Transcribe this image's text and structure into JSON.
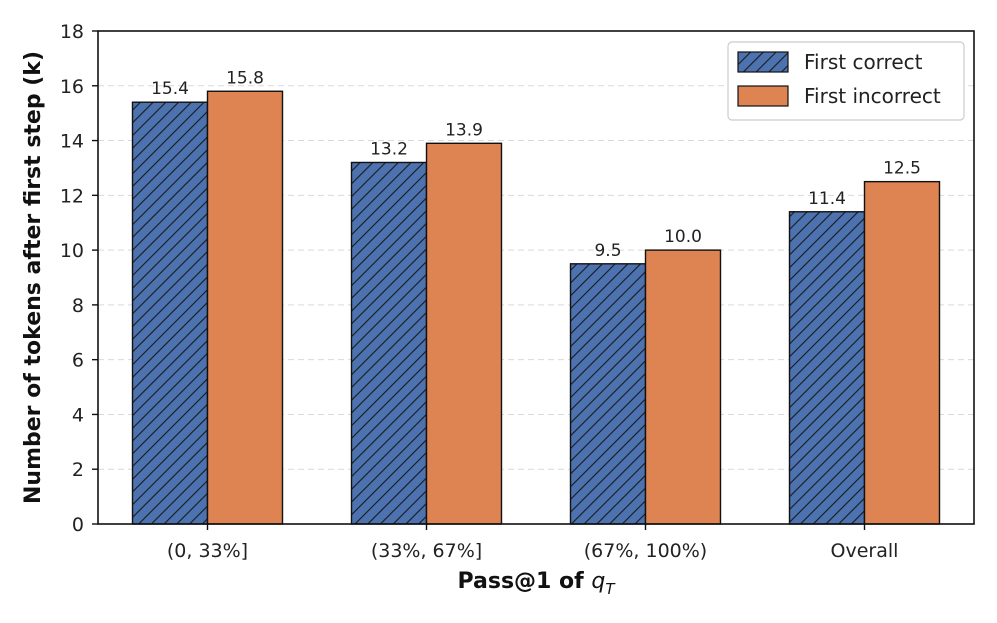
{
  "chart_data": {
    "type": "bar",
    "categories": [
      "(0, 33%]",
      "(33%, 67%]",
      "(67%, 100%)",
      "Overall"
    ],
    "series": [
      {
        "name": "First correct",
        "values": [
          15.4,
          13.2,
          9.5,
          11.4
        ],
        "labels": [
          "15.4",
          "13.2",
          "9.5",
          "11.4"
        ],
        "color": "#4c72b0",
        "hatch": "diagonal"
      },
      {
        "name": "First incorrect",
        "values": [
          15.8,
          13.9,
          10.0,
          12.5
        ],
        "labels": [
          "15.8",
          "13.9",
          "10.0",
          "12.5"
        ],
        "color": "#dd8452",
        "hatch": "none"
      }
    ],
    "title": "",
    "xlabel_main": "Pass@1 of ",
    "xlabel_symbol": "q",
    "xlabel_subscript": "T",
    "ylabel": "Number of tokens after first step (k)",
    "ylim": [
      0,
      18
    ],
    "yticks": [
      "0",
      "2",
      "4",
      "6",
      "8",
      "10",
      "12",
      "14",
      "16",
      "18"
    ],
    "grid": true,
    "legend_position": "top-right"
  }
}
